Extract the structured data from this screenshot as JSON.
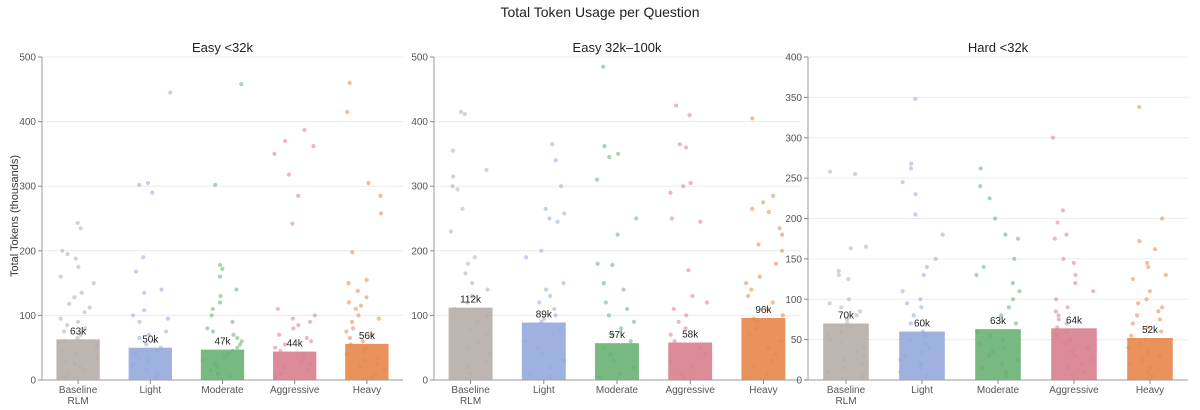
{
  "figure_title": "Total Token Usage per Question",
  "y_axis_label": "Total Tokens (thousands)",
  "colors": {
    "Baseline RLM": "#b5ada8",
    "Light": "#93a9dc",
    "Moderate": "#68b173",
    "Aggressive": "#d8808e",
    "Heavy": "#e8864a"
  },
  "chart_data": [
    {
      "type": "bar",
      "title": "Easy <32k",
      "categories": [
        "Baseline\nRLM",
        "Light",
        "Moderate",
        "Aggressive",
        "Heavy"
      ],
      "values": [
        63,
        50,
        47,
        44,
        56
      ],
      "data_labels": [
        "63k",
        "50k",
        "47k",
        "44k",
        "56k"
      ],
      "ylim": [
        0,
        500
      ],
      "yticks": [
        0,
        100,
        200,
        300,
        400,
        500
      ],
      "points": [
        [
          243,
          235,
          200,
          195,
          188,
          175,
          160,
          150,
          135,
          128,
          118,
          112,
          105,
          95,
          90,
          85,
          80,
          75,
          70,
          65,
          60,
          58,
          55,
          50,
          45,
          40,
          35,
          30,
          25,
          20,
          15,
          10,
          5
        ],
        [
          445,
          305,
          302,
          290,
          190,
          168,
          140,
          135,
          108,
          100,
          95,
          90,
          75,
          70,
          65,
          60,
          55,
          50,
          45,
          40,
          35,
          30,
          25,
          20,
          15,
          10,
          5
        ],
        [
          458,
          302,
          178,
          172,
          160,
          140,
          130,
          120,
          110,
          100,
          90,
          80,
          75,
          70,
          65,
          60,
          55,
          50,
          45,
          40,
          35,
          30,
          25,
          20,
          15,
          10,
          5
        ],
        [
          387,
          370,
          362,
          350,
          318,
          285,
          242,
          110,
          100,
          95,
          90,
          85,
          80,
          70,
          65,
          60,
          55,
          50,
          45,
          40,
          35,
          30,
          25,
          20,
          15,
          10,
          5
        ],
        [
          460,
          415,
          305,
          285,
          258,
          198,
          155,
          150,
          138,
          128,
          120,
          115,
          110,
          100,
          95,
          90,
          80,
          75,
          70,
          65,
          60,
          55,
          50,
          45,
          40,
          35,
          30,
          25,
          20,
          15,
          10,
          5
        ]
      ]
    },
    {
      "type": "bar",
      "title": "Easy 32k–100k",
      "categories": [
        "Baseline\nRLM",
        "Light",
        "Moderate",
        "Aggressive",
        "Heavy"
      ],
      "values": [
        112,
        89,
        57,
        58,
        96
      ],
      "data_labels": [
        "112k",
        "89k",
        "57k",
        "58k",
        "96k"
      ],
      "ylim": [
        0,
        500
      ],
      "yticks": [
        0,
        100,
        200,
        300,
        400,
        500
      ],
      "points": [
        [
          415,
          412,
          355,
          325,
          315,
          300,
          295,
          265,
          230,
          190,
          180,
          165,
          150,
          140,
          130,
          120,
          110,
          100,
          90,
          80,
          70,
          60,
          50,
          40,
          30,
          20,
          10
        ],
        [
          365,
          340,
          300,
          265,
          258,
          250,
          245,
          200,
          190,
          150,
          140,
          130,
          120,
          110,
          100,
          95,
          90,
          80,
          70,
          60,
          50,
          40,
          30,
          20,
          10,
          5
        ],
        [
          485,
          362,
          350,
          345,
          310,
          250,
          225,
          180,
          178,
          150,
          140,
          120,
          110,
          100,
          90,
          80,
          70,
          60,
          50,
          40,
          30,
          20,
          10,
          5
        ],
        [
          425,
          410,
          365,
          360,
          305,
          300,
          290,
          250,
          245,
          170,
          130,
          120,
          110,
          100,
          90,
          80,
          70,
          60,
          50,
          40,
          30,
          20,
          10,
          5
        ],
        [
          405,
          285,
          275,
          265,
          260,
          235,
          225,
          210,
          200,
          180,
          160,
          150,
          140,
          130,
          120,
          110,
          100,
          95,
          90,
          80,
          70,
          60,
          50,
          40,
          30,
          20,
          10
        ]
      ]
    },
    {
      "type": "bar",
      "title": "Hard <32k",
      "categories": [
        "Baseline\nRLM",
        "Light",
        "Moderate",
        "Aggressive",
        "Heavy"
      ],
      "values": [
        70,
        60,
        63,
        64,
        52
      ],
      "data_labels": [
        "70k",
        "60k",
        "63k",
        "64k",
        "52k"
      ],
      "ylim": [
        0,
        400
      ],
      "yticks": [
        0,
        50,
        100,
        150,
        200,
        250,
        300,
        350,
        400
      ],
      "points": [
        [
          258,
          255,
          165,
          163,
          135,
          130,
          125,
          100,
          95,
          90,
          85,
          80,
          75,
          70,
          65,
          60,
          55,
          50,
          45,
          40,
          35,
          30,
          25,
          20,
          15,
          10,
          5
        ],
        [
          348,
          268,
          262,
          245,
          230,
          205,
          180,
          150,
          140,
          130,
          110,
          100,
          95,
          90,
          80,
          70,
          60,
          55,
          50,
          45,
          40,
          35,
          30,
          25,
          20,
          15,
          10,
          5
        ],
        [
          262,
          240,
          225,
          200,
          180,
          175,
          150,
          140,
          130,
          120,
          110,
          100,
          90,
          80,
          70,
          60,
          55,
          50,
          45,
          40,
          35,
          30,
          25,
          20,
          15,
          10,
          5
        ],
        [
          300,
          210,
          195,
          180,
          175,
          150,
          145,
          130,
          120,
          110,
          100,
          90,
          85,
          80,
          75,
          70,
          65,
          60,
          55,
          50,
          45,
          40,
          35,
          30,
          25,
          20,
          15,
          10,
          5
        ],
        [
          338,
          200,
          172,
          162,
          145,
          140,
          130,
          125,
          110,
          100,
          95,
          90,
          85,
          80,
          75,
          70,
          65,
          60,
          55,
          50,
          45,
          40,
          35,
          30,
          25,
          20,
          15,
          10,
          5
        ]
      ]
    }
  ]
}
